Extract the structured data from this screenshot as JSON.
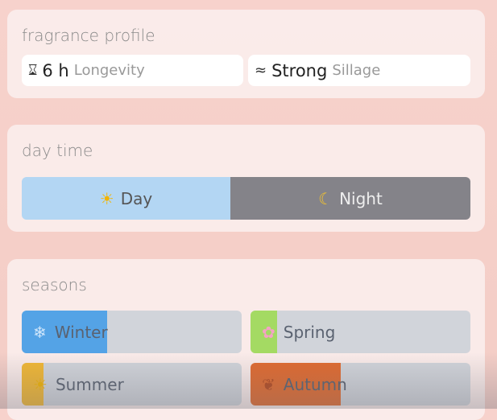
{
  "profile": {
    "title": "fragrance profile",
    "longevity": {
      "icon": "hourglass-icon",
      "value": "6 h",
      "label": "Longevity"
    },
    "sillage": {
      "icon": "waves-icon",
      "value": "Strong",
      "label": "Sillage"
    }
  },
  "daytime": {
    "title": "day time",
    "day": {
      "label": "Day",
      "icon": "sun-icon",
      "share_percent": 46.5,
      "color": "#b3d6f3"
    },
    "night": {
      "label": "Night",
      "icon": "moon-icon",
      "color": "#848389"
    }
  },
  "seasons": {
    "title": "seasons",
    "items": [
      {
        "label": "Winter",
        "icon": "snowflake-icon",
        "fill_percent": 39,
        "color": "#54a3e6"
      },
      {
        "label": "Spring",
        "icon": "blossom-icon",
        "fill_percent": 12,
        "color": "#a4da63"
      },
      {
        "label": "Summer",
        "icon": "sun-icon",
        "fill_percent": 10,
        "color": "#f1b733"
      },
      {
        "label": "Autumn",
        "icon": "fallen-leaf-icon",
        "fill_percent": 41,
        "color": "#e06a2f"
      }
    ]
  }
}
